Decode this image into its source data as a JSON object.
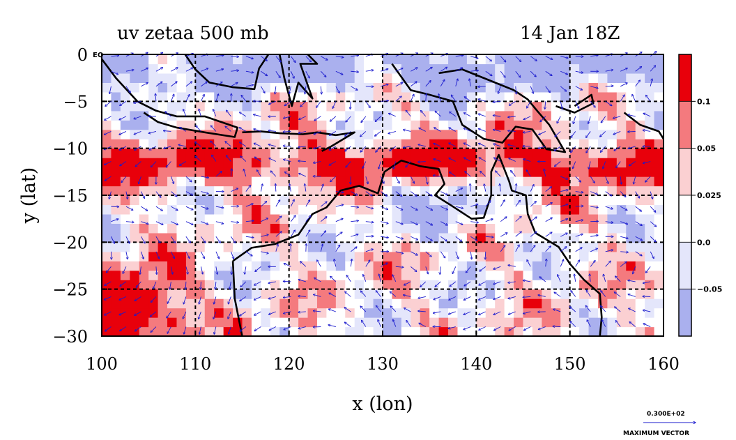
{
  "chart_data": {
    "type": "heatmap",
    "title": "uv zetaa 500 mb",
    "time_label": "14 Jan 18Z",
    "xlabel": "x (lon)",
    "ylabel": "y (lat)",
    "xlim": [
      100,
      160
    ],
    "ylim": [
      -30,
      0
    ],
    "x_ticks": [
      100,
      110,
      120,
      130,
      140,
      150,
      160
    ],
    "y_ticks": [
      {
        "value": 0,
        "label": "0"
      },
      {
        "value": -5,
        "label": "−5"
      },
      {
        "value": -10,
        "label": "−10"
      },
      {
        "value": -15,
        "label": "−15"
      },
      {
        "value": -20,
        "label": "−20"
      },
      {
        "value": -25,
        "label": "−25"
      },
      {
        "value": -30,
        "label": "−30"
      }
    ],
    "eq_label": "EQ",
    "grid": true,
    "colorbar": {
      "levels": [
        "0.1",
        "0.05",
        "0.025",
        "0.0",
        "−0.05"
      ],
      "colors": [
        "#e8000b",
        "#f47a7e",
        "#fbd0d2",
        "#ffffff",
        "#e4e6fb",
        "#aab0ee"
      ]
    },
    "vector_reference": {
      "value_label": "0.300E+02",
      "caption": "MAXIMUM VECTOR"
    },
    "coastline_color": "#000000",
    "vector_color": "#1a1acd"
  }
}
